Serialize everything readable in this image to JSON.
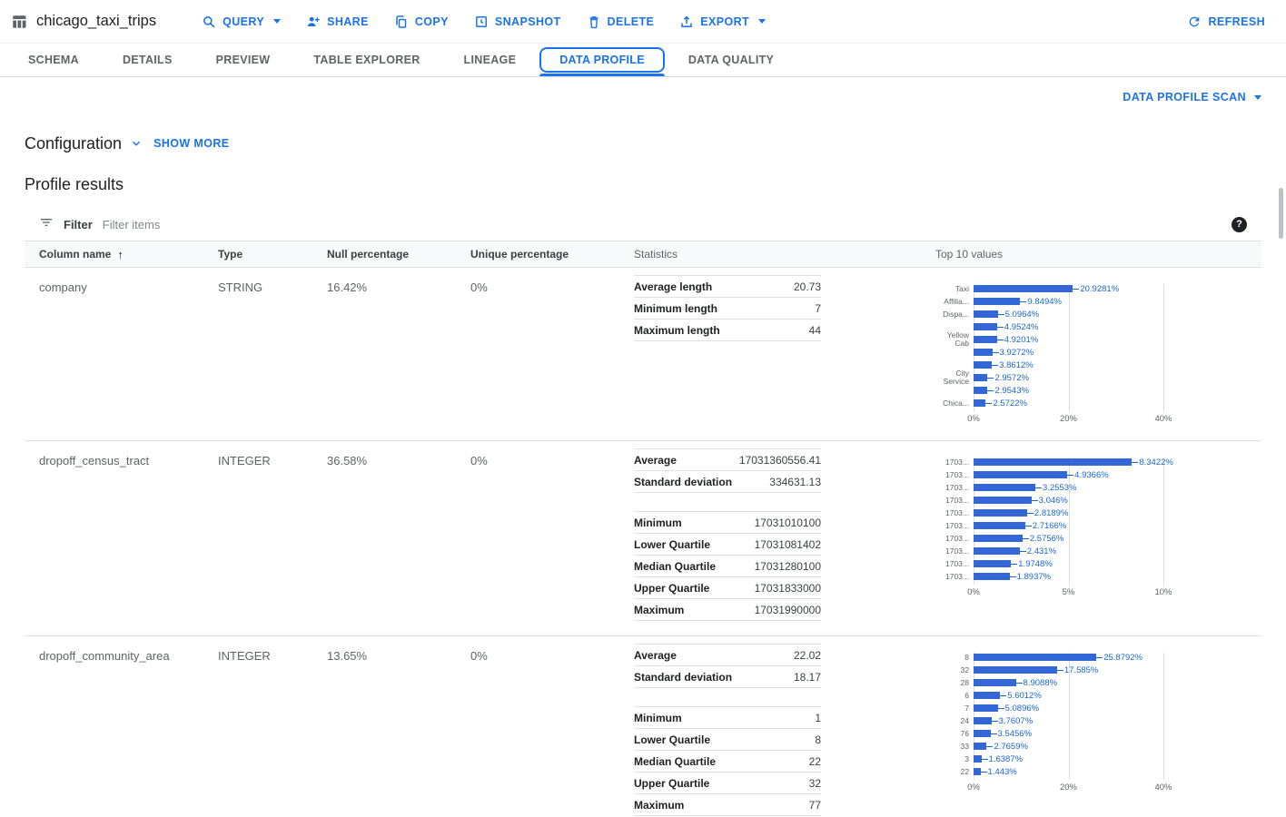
{
  "header": {
    "title": "chicago_taxi_trips",
    "actions": [
      {
        "label": "QUERY",
        "icon": "search",
        "caret": true
      },
      {
        "label": "SHARE",
        "icon": "person-add",
        "caret": false
      },
      {
        "label": "COPY",
        "icon": "copy",
        "caret": false
      },
      {
        "label": "SNAPSHOT",
        "icon": "snapshot",
        "caret": false
      },
      {
        "label": "DELETE",
        "icon": "delete",
        "caret": false
      },
      {
        "label": "EXPORT",
        "icon": "export",
        "caret": true
      }
    ],
    "refresh_label": "REFRESH"
  },
  "tabs": [
    "SCHEMA",
    "DETAILS",
    "PREVIEW",
    "TABLE EXPLORER",
    "LINEAGE",
    "DATA PROFILE",
    "DATA QUALITY"
  ],
  "active_tab": "DATA PROFILE",
  "scan_menu_label": "DATA PROFILE SCAN",
  "configuration": {
    "title": "Configuration",
    "show_more_label": "SHOW MORE"
  },
  "profile_results_title": "Profile results",
  "filter": {
    "label": "Filter",
    "placeholder": "Filter items",
    "help_glyph": "?"
  },
  "colors": {
    "accent": "#1a73e8",
    "bar": "#3367d6"
  },
  "table": {
    "headers": [
      "Column name",
      "Type",
      "Null percentage",
      "Unique percentage",
      "Statistics",
      "Top 10 values"
    ],
    "sort_glyph": "↑",
    "rows": [
      {
        "column_name": "company",
        "type": "STRING",
        "null_percentage": "16.42%",
        "unique_percentage": "0%",
        "statistics": [
          [
            {
              "label": "Average length",
              "value": "20.73"
            },
            {
              "label": "Minimum length",
              "value": "7"
            },
            {
              "label": "Maximum length",
              "value": "44"
            }
          ]
        ],
        "chart": {
          "type": "bar",
          "labels": [
            "Taxi",
            "Affilia...",
            "Dispa...",
            "",
            "Yellow Cab",
            "",
            "",
            "City Service",
            "",
            "Chica..."
          ],
          "values": [
            20.9281,
            9.8494,
            5.0964,
            4.9524,
            4.9201,
            3.9272,
            3.8612,
            2.9572,
            2.9543,
            2.5722
          ],
          "ticks": [
            "0%",
            "20%",
            "40%"
          ],
          "axis_max": 40
        }
      },
      {
        "column_name": "dropoff_census_tract",
        "type": "INTEGER",
        "null_percentage": "36.58%",
        "unique_percentage": "0%",
        "statistics": [
          [
            {
              "label": "Average",
              "value": "17031360556.41"
            },
            {
              "label": "Standard deviation",
              "value": "334631.13"
            }
          ],
          [
            {
              "label": "Minimum",
              "value": "17031010100"
            },
            {
              "label": "Lower Quartile",
              "value": "17031081402"
            },
            {
              "label": "Median Quartile",
              "value": "17031280100"
            },
            {
              "label": "Upper Quartile",
              "value": "17031833000"
            },
            {
              "label": "Maximum",
              "value": "17031990000"
            }
          ]
        ],
        "chart": {
          "type": "bar",
          "labels": [
            "1703...",
            "1703...",
            "1703...",
            "1703...",
            "1703...",
            "1703...",
            "1703...",
            "1703...",
            "1703...",
            "1703..."
          ],
          "values": [
            8.3422,
            4.9366,
            3.2553,
            3.046,
            2.8189,
            2.7166,
            2.5756,
            2.431,
            1.9748,
            1.8937
          ],
          "ticks": [
            "0%",
            "5%",
            "10%"
          ],
          "axis_max": 10
        }
      },
      {
        "column_name": "dropoff_community_area",
        "type": "INTEGER",
        "null_percentage": "13.65%",
        "unique_percentage": "0%",
        "statistics": [
          [
            {
              "label": "Average",
              "value": "22.02"
            },
            {
              "label": "Standard deviation",
              "value": "18.17"
            }
          ],
          [
            {
              "label": "Minimum",
              "value": "1"
            },
            {
              "label": "Lower Quartile",
              "value": "8"
            },
            {
              "label": "Median Quartile",
              "value": "22"
            },
            {
              "label": "Upper Quartile",
              "value": "32"
            },
            {
              "label": "Maximum",
              "value": "77"
            }
          ]
        ],
        "chart": {
          "type": "bar",
          "labels": [
            "8",
            "32",
            "28",
            "6",
            "7",
            "24",
            "76",
            "33",
            "3",
            "22"
          ],
          "values": [
            25.8792,
            17.585,
            8.9088,
            5.6012,
            5.0896,
            3.7607,
            3.5456,
            2.7659,
            1.6387,
            1.443
          ],
          "ticks": [
            "0%",
            "20%",
            "40%"
          ],
          "axis_max": 40
        }
      }
    ]
  }
}
